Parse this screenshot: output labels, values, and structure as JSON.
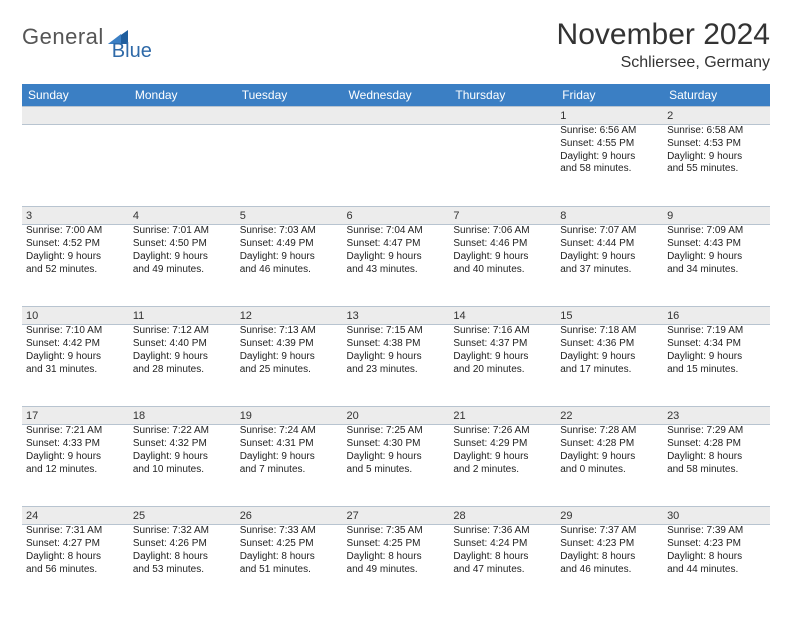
{
  "logo": {
    "word1": "General",
    "word2": "Blue",
    "mark_color": "#1f5e9e"
  },
  "title": "November 2024",
  "subtitle": "Schliersee, Germany",
  "header_bg": "#3b7fc4",
  "daynum_bg": "#ececec",
  "border_color": "#b8c4d0",
  "weekdays": [
    "Sunday",
    "Monday",
    "Tuesday",
    "Wednesday",
    "Thursday",
    "Friday",
    "Saturday"
  ],
  "weeks": [
    [
      null,
      null,
      null,
      null,
      null,
      {
        "n": "1",
        "sr": "Sunrise: 6:56 AM",
        "ss": "Sunset: 4:55 PM",
        "d1": "Daylight: 9 hours",
        "d2": "and 58 minutes."
      },
      {
        "n": "2",
        "sr": "Sunrise: 6:58 AM",
        "ss": "Sunset: 4:53 PM",
        "d1": "Daylight: 9 hours",
        "d2": "and 55 minutes."
      }
    ],
    [
      {
        "n": "3",
        "sr": "Sunrise: 7:00 AM",
        "ss": "Sunset: 4:52 PM",
        "d1": "Daylight: 9 hours",
        "d2": "and 52 minutes."
      },
      {
        "n": "4",
        "sr": "Sunrise: 7:01 AM",
        "ss": "Sunset: 4:50 PM",
        "d1": "Daylight: 9 hours",
        "d2": "and 49 minutes."
      },
      {
        "n": "5",
        "sr": "Sunrise: 7:03 AM",
        "ss": "Sunset: 4:49 PM",
        "d1": "Daylight: 9 hours",
        "d2": "and 46 minutes."
      },
      {
        "n": "6",
        "sr": "Sunrise: 7:04 AM",
        "ss": "Sunset: 4:47 PM",
        "d1": "Daylight: 9 hours",
        "d2": "and 43 minutes."
      },
      {
        "n": "7",
        "sr": "Sunrise: 7:06 AM",
        "ss": "Sunset: 4:46 PM",
        "d1": "Daylight: 9 hours",
        "d2": "and 40 minutes."
      },
      {
        "n": "8",
        "sr": "Sunrise: 7:07 AM",
        "ss": "Sunset: 4:44 PM",
        "d1": "Daylight: 9 hours",
        "d2": "and 37 minutes."
      },
      {
        "n": "9",
        "sr": "Sunrise: 7:09 AM",
        "ss": "Sunset: 4:43 PM",
        "d1": "Daylight: 9 hours",
        "d2": "and 34 minutes."
      }
    ],
    [
      {
        "n": "10",
        "sr": "Sunrise: 7:10 AM",
        "ss": "Sunset: 4:42 PM",
        "d1": "Daylight: 9 hours",
        "d2": "and 31 minutes."
      },
      {
        "n": "11",
        "sr": "Sunrise: 7:12 AM",
        "ss": "Sunset: 4:40 PM",
        "d1": "Daylight: 9 hours",
        "d2": "and 28 minutes."
      },
      {
        "n": "12",
        "sr": "Sunrise: 7:13 AM",
        "ss": "Sunset: 4:39 PM",
        "d1": "Daylight: 9 hours",
        "d2": "and 25 minutes."
      },
      {
        "n": "13",
        "sr": "Sunrise: 7:15 AM",
        "ss": "Sunset: 4:38 PM",
        "d1": "Daylight: 9 hours",
        "d2": "and 23 minutes."
      },
      {
        "n": "14",
        "sr": "Sunrise: 7:16 AM",
        "ss": "Sunset: 4:37 PM",
        "d1": "Daylight: 9 hours",
        "d2": "and 20 minutes."
      },
      {
        "n": "15",
        "sr": "Sunrise: 7:18 AM",
        "ss": "Sunset: 4:36 PM",
        "d1": "Daylight: 9 hours",
        "d2": "and 17 minutes."
      },
      {
        "n": "16",
        "sr": "Sunrise: 7:19 AM",
        "ss": "Sunset: 4:34 PM",
        "d1": "Daylight: 9 hours",
        "d2": "and 15 minutes."
      }
    ],
    [
      {
        "n": "17",
        "sr": "Sunrise: 7:21 AM",
        "ss": "Sunset: 4:33 PM",
        "d1": "Daylight: 9 hours",
        "d2": "and 12 minutes."
      },
      {
        "n": "18",
        "sr": "Sunrise: 7:22 AM",
        "ss": "Sunset: 4:32 PM",
        "d1": "Daylight: 9 hours",
        "d2": "and 10 minutes."
      },
      {
        "n": "19",
        "sr": "Sunrise: 7:24 AM",
        "ss": "Sunset: 4:31 PM",
        "d1": "Daylight: 9 hours",
        "d2": "and 7 minutes."
      },
      {
        "n": "20",
        "sr": "Sunrise: 7:25 AM",
        "ss": "Sunset: 4:30 PM",
        "d1": "Daylight: 9 hours",
        "d2": "and 5 minutes."
      },
      {
        "n": "21",
        "sr": "Sunrise: 7:26 AM",
        "ss": "Sunset: 4:29 PM",
        "d1": "Daylight: 9 hours",
        "d2": "and 2 minutes."
      },
      {
        "n": "22",
        "sr": "Sunrise: 7:28 AM",
        "ss": "Sunset: 4:28 PM",
        "d1": "Daylight: 9 hours",
        "d2": "and 0 minutes."
      },
      {
        "n": "23",
        "sr": "Sunrise: 7:29 AM",
        "ss": "Sunset: 4:28 PM",
        "d1": "Daylight: 8 hours",
        "d2": "and 58 minutes."
      }
    ],
    [
      {
        "n": "24",
        "sr": "Sunrise: 7:31 AM",
        "ss": "Sunset: 4:27 PM",
        "d1": "Daylight: 8 hours",
        "d2": "and 56 minutes."
      },
      {
        "n": "25",
        "sr": "Sunrise: 7:32 AM",
        "ss": "Sunset: 4:26 PM",
        "d1": "Daylight: 8 hours",
        "d2": "and 53 minutes."
      },
      {
        "n": "26",
        "sr": "Sunrise: 7:33 AM",
        "ss": "Sunset: 4:25 PM",
        "d1": "Daylight: 8 hours",
        "d2": "and 51 minutes."
      },
      {
        "n": "27",
        "sr": "Sunrise: 7:35 AM",
        "ss": "Sunset: 4:25 PM",
        "d1": "Daylight: 8 hours",
        "d2": "and 49 minutes."
      },
      {
        "n": "28",
        "sr": "Sunrise: 7:36 AM",
        "ss": "Sunset: 4:24 PM",
        "d1": "Daylight: 8 hours",
        "d2": "and 47 minutes."
      },
      {
        "n": "29",
        "sr": "Sunrise: 7:37 AM",
        "ss": "Sunset: 4:23 PM",
        "d1": "Daylight: 8 hours",
        "d2": "and 46 minutes."
      },
      {
        "n": "30",
        "sr": "Sunrise: 7:39 AM",
        "ss": "Sunset: 4:23 PM",
        "d1": "Daylight: 8 hours",
        "d2": "and 44 minutes."
      }
    ]
  ]
}
